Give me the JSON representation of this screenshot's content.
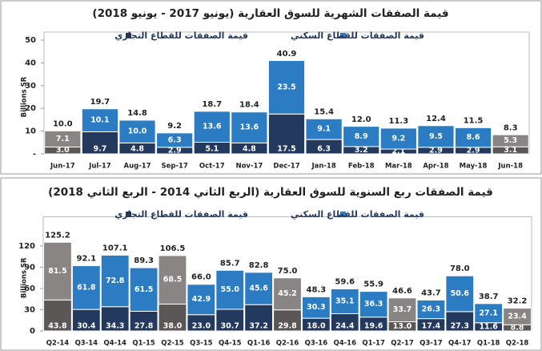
{
  "chart_data": [
    {
      "type": "bar",
      "stacked": true,
      "title": "قيمة الصفقات الشهرية للسوق العقارية (يونيو 2017 - يونيو 2018)",
      "y_label": "Billions SR",
      "categories": [
        "Jun-17",
        "Jul-17",
        "Aug-17",
        "Sep-17",
        "Oct-17",
        "Nov-17",
        "Dec-17",
        "Jan-18",
        "Feb-18",
        "Mar-18",
        "Apr-18",
        "May-18",
        "Jun-18"
      ],
      "series": [
        {
          "name": "قيمة الصفقات للقطاع التجاري",
          "color": "#23395d",
          "colors": [
            "#5b5757",
            "#23395d",
            "#23395d",
            "#23395d",
            "#23395d",
            "#23395d",
            "#23395d",
            "#23395d",
            "#23395d",
            "#23395d",
            "#23395d",
            "#23395d",
            "#5b5757"
          ],
          "values": [
            3.0,
            9.7,
            4.8,
            2.9,
            5.1,
            4.8,
            17.5,
            6.3,
            3.2,
            2.1,
            2.9,
            2.9,
            3.1
          ],
          "value_labels": [
            "3.0",
            "9.7",
            "4.8",
            "2.9",
            "5.1",
            "4.8",
            "17.5",
            "6.3",
            "3.2",
            "2.1",
            "2.9",
            "2.9",
            "3.1"
          ]
        },
        {
          "name": "قيمة الصفقات للقطاع السكني",
          "color": "#2c7cc4",
          "colors": [
            "#8a8585",
            "#2c7cc4",
            "#2c7cc4",
            "#2c7cc4",
            "#2c7cc4",
            "#2c7cc4",
            "#2c7cc4",
            "#2c7cc4",
            "#2c7cc4",
            "#2c7cc4",
            "#2c7cc4",
            "#2c7cc4",
            "#8a8585"
          ],
          "values": [
            7.1,
            10.1,
            10.0,
            6.3,
            13.6,
            13.6,
            23.5,
            9.1,
            8.9,
            9.2,
            9.5,
            8.6,
            5.3
          ],
          "value_labels": [
            "7.1",
            "10.1",
            "10.0",
            "6.3",
            "13.6",
            "13.6",
            "23.5",
            "9.1",
            "8.9",
            "9.2",
            "9.5",
            "8.6",
            "5.3"
          ]
        }
      ],
      "totals": [
        10.0,
        19.7,
        14.8,
        9.2,
        18.7,
        18.4,
        40.9,
        15.4,
        12.0,
        11.3,
        12.4,
        11.5,
        8.3
      ],
      "total_labels": [
        "10.0",
        "19.7",
        "14.8",
        "9.2",
        "18.7",
        "18.4",
        "40.9",
        "15.4",
        "12.0",
        "11.3",
        "12.4",
        "11.5",
        "8.3"
      ],
      "ylim": [
        0,
        50
      ],
      "yticks": [
        {
          "value": 0,
          "label": "-"
        },
        10,
        20,
        30,
        40,
        50
      ]
    },
    {
      "type": "bar",
      "stacked": true,
      "title": "قيمة الصفقات ربع السنوية للسوق العقارية (الربع الثاني 2014 - الربع الثاني 2018)",
      "y_label": "Billions SR",
      "categories": [
        "Q2-14",
        "Q3-14",
        "Q4-14",
        "Q1-15",
        "Q2-15",
        "Q3-15",
        "Q4-15",
        "Q1-16",
        "Q2-16",
        "Q3-16",
        "Q4-16",
        "Q1-17",
        "Q2-17",
        "Q3-17",
        "Q4-17",
        "Q1-18",
        "Q2-18"
      ],
      "series": [
        {
          "name": "قيمة الصفقات للقطاع التجاري",
          "color": "#23395d",
          "colors": [
            "#5b5757",
            "#23395d",
            "#23395d",
            "#23395d",
            "#5b5757",
            "#23395d",
            "#23395d",
            "#23395d",
            "#5b5757",
            "#23395d",
            "#23395d",
            "#23395d",
            "#5b5757",
            "#23395d",
            "#23395d",
            "#23395d",
            "#5b5757"
          ],
          "values": [
            43.8,
            30.4,
            34.3,
            27.8,
            38.0,
            23.0,
            30.7,
            37.2,
            29.8,
            18.0,
            24.4,
            19.6,
            13.0,
            17.4,
            27.3,
            11.6,
            8.8
          ],
          "value_labels": [
            "43.8",
            "30.4",
            "34.3",
            "27.8",
            "38.0",
            "23.0",
            "30.7",
            "37.2",
            "29.8",
            "18.0",
            "24.4",
            "19.6",
            "13.0",
            "17.4",
            "27.3",
            "11.6",
            "8.8"
          ]
        },
        {
          "name": "قيمة الصفقات للقطاع السكني",
          "color": "#2c7cc4",
          "colors": [
            "#8a8585",
            "#2c7cc4",
            "#2c7cc4",
            "#2c7cc4",
            "#8a8585",
            "#2c7cc4",
            "#2c7cc4",
            "#2c7cc4",
            "#8a8585",
            "#2c7cc4",
            "#2c7cc4",
            "#2c7cc4",
            "#8a8585",
            "#2c7cc4",
            "#2c7cc4",
            "#2c7cc4",
            "#8a8585"
          ],
          "values": [
            81.5,
            61.8,
            72.8,
            61.5,
            68.5,
            42.9,
            55.0,
            45.6,
            45.2,
            30.3,
            35.1,
            36.3,
            33.7,
            26.3,
            50.6,
            27.1,
            23.4
          ],
          "value_labels": [
            "81.5",
            "61.8",
            "72.8",
            "61.5",
            "68.5",
            "42.9",
            "55.0",
            "45.6",
            "45.2",
            "30.3",
            "35.1",
            "36.3",
            "33.7",
            "26.3",
            "50.6",
            "27.1",
            "23.4"
          ]
        }
      ],
      "totals": [
        125.2,
        92.1,
        107.1,
        89.3,
        106.5,
        66.0,
        85.7,
        82.8,
        75.0,
        48.3,
        59.6,
        55.9,
        46.6,
        43.7,
        78.0,
        38.7,
        32.2
      ],
      "total_labels": [
        "125.2",
        "92.1",
        "107.1",
        "89.3",
        "106.5",
        "66.0",
        "85.7",
        "82.8",
        "75.0",
        "48.3",
        "59.6",
        "55.9",
        "46.6",
        "43.7",
        "78.0",
        "38.7",
        "32.2"
      ],
      "ylim": [
        0,
        150
      ],
      "yticks": [
        0,
        30,
        60,
        90,
        120
      ]
    }
  ]
}
